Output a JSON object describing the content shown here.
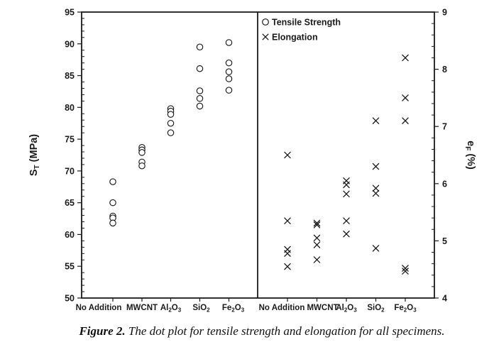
{
  "figure": {
    "caption": {
      "prefix": "Figure 2.",
      "text": " The dot plot for tensile strength and elongation for all specimens."
    }
  },
  "colors": {
    "ink": "#1a1a1a",
    "background": "#ffffff",
    "marker": "#1a1a1a"
  },
  "chart_data": {
    "type": "scatter",
    "subtype": "two-panel dot plot, categorical x-axis repeated in each panel",
    "categories": [
      "No Addition",
      "MWCNT",
      "Al₂O₃",
      "SiO₂",
      "Fe₂O₃"
    ],
    "legend": {
      "position": "top-left of right panel",
      "items": [
        {
          "marker": "circle",
          "label": "Tensile Strength"
        },
        {
          "marker": "x",
          "label": "Elongation"
        }
      ]
    },
    "left_axis": {
      "text": "ST (MPa)",
      "parts": [
        {
          "t": "S"
        },
        {
          "t": "T",
          "sub": true
        },
        {
          "t": " (MPa)"
        }
      ],
      "min": 50,
      "max": 95,
      "major_tick_step": 5,
      "minor_tick_step": 1,
      "major_ticks": [
        95,
        90,
        85,
        80,
        75,
        70,
        65,
        60,
        55,
        50
      ]
    },
    "right_axis": {
      "text": "eF (%)",
      "parts": [
        {
          "t": "e"
        },
        {
          "t": "F",
          "sub": true
        },
        {
          "t": " (%)"
        }
      ],
      "min": 4,
      "max": 9,
      "major_tick_step": 1,
      "minor_tick_step": 0.2,
      "major_ticks": [
        9,
        8,
        7,
        6,
        5,
        4
      ]
    },
    "series": [
      {
        "name": "Tensile Strength",
        "marker": "circle",
        "panel": "left",
        "unit": "MPa",
        "values": [
          [
            68.3,
            65.0,
            62.9,
            62.6,
            61.8
          ],
          [
            73.7,
            73.3,
            72.9,
            71.4,
            70.8
          ],
          [
            79.8,
            79.4,
            78.9,
            77.5,
            76.0
          ],
          [
            89.5,
            86.1,
            82.6,
            81.4,
            80.2
          ],
          [
            90.2,
            87.0,
            85.6,
            84.5,
            82.7
          ]
        ]
      },
      {
        "name": "Elongation",
        "marker": "x",
        "panel": "right",
        "unit": "%",
        "values": [
          [
            6.5,
            5.35,
            4.85,
            4.78,
            4.55
          ],
          [
            5.31,
            5.28,
            5.05,
            4.93,
            4.67
          ],
          [
            6.05,
            5.98,
            5.82,
            5.35,
            5.12
          ],
          [
            7.1,
            6.3,
            5.92,
            5.83,
            4.87
          ],
          [
            8.2,
            7.5,
            7.1,
            4.52,
            4.47
          ]
        ]
      }
    ]
  }
}
